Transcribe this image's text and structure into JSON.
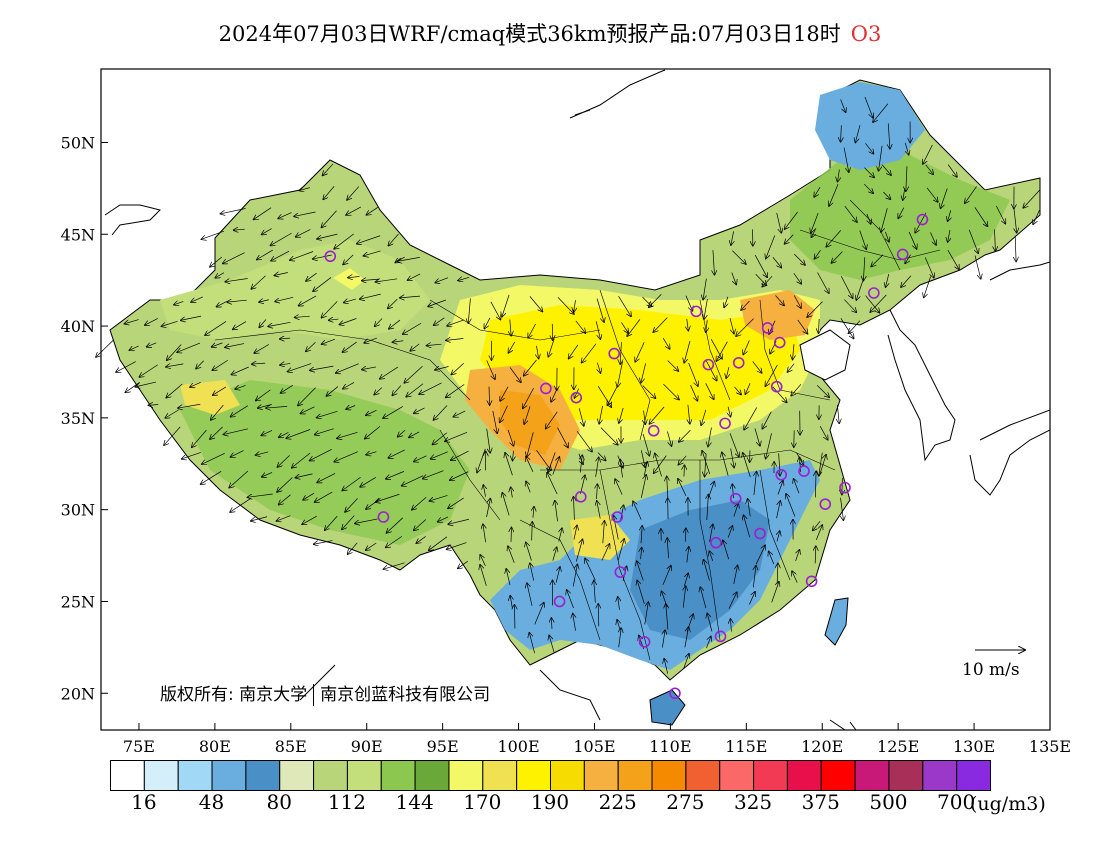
{
  "title": {
    "text": "2024年07月03日WRF/cmaq模式36km预报产品:07月03日18时",
    "species": "O3"
  },
  "axes": {
    "lat_labels": [
      "50N",
      "45N",
      "40N",
      "35N",
      "30N",
      "25N",
      "20N"
    ],
    "lat_values": [
      50,
      45,
      40,
      35,
      30,
      25,
      20
    ],
    "lon_labels": [
      "75E",
      "80E",
      "85E",
      "90E",
      "95E",
      "100E",
      "105E",
      "110E",
      "115E",
      "120E",
      "125E",
      "130E",
      "135E"
    ],
    "lon_values": [
      75,
      80,
      85,
      90,
      95,
      100,
      105,
      110,
      115,
      120,
      125,
      130,
      135
    ],
    "lon_range": [
      72.5,
      135
    ],
    "lat_range": [
      18,
      54
    ]
  },
  "legend": {
    "colors": [
      "#ffffff",
      "#d4eefa",
      "#a0d8f5",
      "#6aaedf",
      "#4a8fc6",
      "#dfe8b8",
      "#b9d57a",
      "#c2df7c",
      "#8cc850",
      "#6aa83a",
      "#f3f866",
      "#f0e152",
      "#fff200",
      "#f7dc00",
      "#f6b040",
      "#f3a21a",
      "#f58a00",
      "#f06030",
      "#fa6868",
      "#f23a55",
      "#e8104a",
      "#ff0000",
      "#c81878",
      "#a83058",
      "#9a38c8",
      "#8a2ae0"
    ],
    "labels": [
      "16",
      "48",
      "80",
      "112",
      "144",
      "170",
      "190",
      "225",
      "275",
      "325",
      "375",
      "500",
      "700"
    ],
    "unit": "(ug/m3)"
  },
  "copyright": {
    "prefix": "版权所有:",
    "org1": "南京大学",
    "org2": "南京创蓝科技有限公司"
  },
  "wind_reference": {
    "label": "10 m/s",
    "speed": 10
  },
  "regions": {
    "high_o3_center": "north-china-plain",
    "low_o3_area": "south-china"
  }
}
